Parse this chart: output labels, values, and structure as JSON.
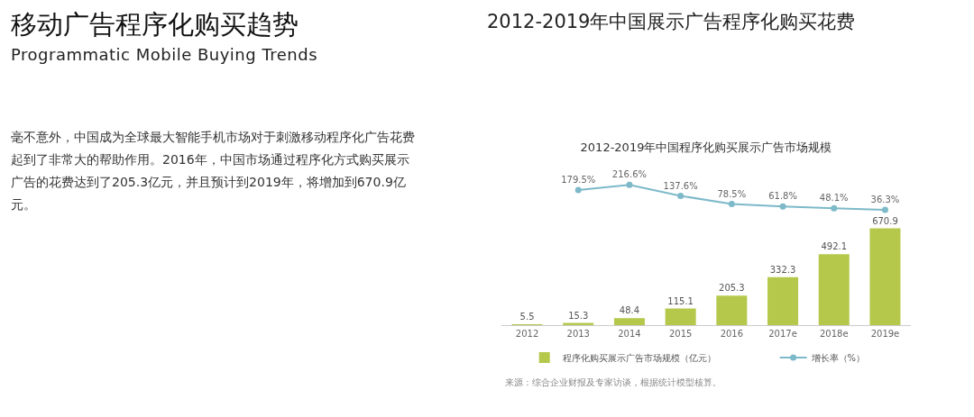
{
  "chart_data": [
    {
      "type": "line",
      "title": "2012-2019年中国程序化购买展示广告市场规模",
      "categories": [
        null,
        null,
        null,
        null,
        null,
        null,
        null,
        null
      ],
      "series": [
        {
          "name": "增长率（%）",
          "color": "#7db9c9",
          "values": [
            null,
            179.5,
            216.6,
            137.6,
            78.5,
            61.8,
            48.1,
            36.3
          ],
          "value_labels": [
            null,
            "179.5%",
            "216.6%",
            "137.6%",
            "78.5%",
            "61.8%",
            "48.1%",
            "36.3%"
          ]
        }
      ],
      "marker": "circle",
      "legend": "bottom",
      "grid": false,
      "annotations": [
        "移动广告程序化购买趋势",
        "Programmatic Mobile Buying Trends",
        "2012-2019年中国展示广告程序化购买花费",
        "毫不意外，中国成为全球最大智能手机市场对于刺激移动程序化广告花费起到了非常大的帮助作用。2016年，中国市场通过程序化方式购买展示广告的花费达到了205.3亿元，并且预计到2019年，将增加到670.9亿元。"
      ]
    },
    {
      "type": "bar",
      "categories": [
        "2012",
        "2013",
        "2014",
        "2015",
        "2016",
        "2017e",
        "2018e",
        "2019e"
      ],
      "series": [
        {
          "name": "程序化购买展示广告市场规模（亿元）",
          "color": "#b5c84c",
          "values": [
            5.5,
            15.3,
            48.4,
            115.1,
            205.3,
            332.3,
            492.1,
            670.9
          ]
        }
      ],
      "data_labels": true,
      "legend": "bottom",
      "grid": false,
      "annotations": [
        "来源：综合企业财报及专家访谈，根据统计模型核算。"
      ]
    }
  ]
}
